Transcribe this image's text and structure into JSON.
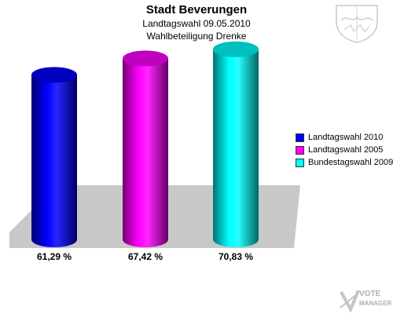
{
  "chart_data": {
    "type": "bar",
    "title": "Stadt Beverungen",
    "subtitle": "Landtagswahl 09.05.2010",
    "subtitle2": "Wahlbeteiligung Drenke",
    "xlabel": "",
    "ylabel": "",
    "ylim": [
      0,
      100
    ],
    "grid": false,
    "legend_position": "right",
    "series": [
      {
        "name": "Landtagswahl 2010",
        "value": 61.29,
        "label": "61,29 %",
        "color": "#0000ff"
      },
      {
        "name": "Landtagswahl 2005",
        "value": 67.42,
        "label": "67,42 %",
        "color": "#ff00ff"
      },
      {
        "name": "Bundestagswahl 2009",
        "value": 70.83,
        "label": "70,83 %",
        "color": "#00ffff"
      }
    ]
  },
  "watermark": {
    "line1": "VOTE",
    "line2": "MANAGER"
  },
  "crest_icon": "coat-of-arms-icon"
}
